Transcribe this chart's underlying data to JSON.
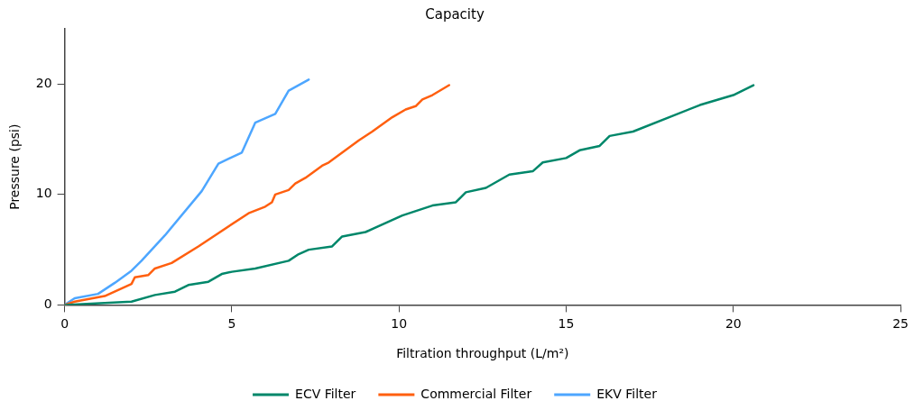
{
  "chart_data": {
    "type": "line",
    "title": "Capacity",
    "xlabel": "Filtration throughput (L/m²)",
    "ylabel": "Pressure (psi)",
    "xlim": [
      0,
      25
    ],
    "xticks": [
      0,
      5,
      10,
      15,
      20,
      25
    ],
    "ylim": [
      0,
      25
    ],
    "yticks": [
      0,
      10,
      20
    ],
    "grid": false,
    "legend": "bottom",
    "marker": "none",
    "line_style": "solid",
    "series": [
      {
        "name": "ECV Filter",
        "color": "#00876a",
        "x": [
          0,
          2.0,
          2.7,
          3.3,
          3.7,
          4.3,
          4.7,
          5.0,
          5.7,
          6.7,
          7.0,
          7.3,
          8.0,
          8.3,
          9.0,
          10.1,
          11.0,
          11.7,
          12.0,
          12.6,
          13.3,
          14.0,
          14.3,
          15.0,
          15.4,
          16.0,
          16.3,
          17.0,
          19.0,
          20.0,
          20.6
        ],
        "values": [
          0,
          0.3,
          0.9,
          1.2,
          1.8,
          2.1,
          2.8,
          3.0,
          3.3,
          4.0,
          4.6,
          5.0,
          5.3,
          6.2,
          6.6,
          8.1,
          9.0,
          9.3,
          10.2,
          10.6,
          11.8,
          12.1,
          12.9,
          13.3,
          14.0,
          14.4,
          15.3,
          15.7,
          18.1,
          19.0,
          19.9
        ]
      },
      {
        "name": "Commercial Filter",
        "color": "#ff5f0f",
        "x": [
          0,
          0.3,
          1.2,
          2.0,
          2.1,
          2.5,
          2.7,
          3.2,
          4.0,
          4.6,
          5.5,
          6.0,
          6.2,
          6.3,
          6.7,
          6.9,
          7.2,
          7.7,
          7.9,
          8.8,
          9.2,
          9.8,
          10.2,
          10.5,
          10.7,
          11.0,
          11.5
        ],
        "values": [
          0,
          0.3,
          0.8,
          1.9,
          2.5,
          2.7,
          3.3,
          3.8,
          5.3,
          6.5,
          8.3,
          8.9,
          9.3,
          10.0,
          10.4,
          11.0,
          11.5,
          12.6,
          12.9,
          14.9,
          15.7,
          17.0,
          17.7,
          18.0,
          18.6,
          19.0,
          19.9
        ]
      },
      {
        "name": "EKV Filter",
        "color": "#4da6ff",
        "x": [
          0,
          0.3,
          1.0,
          1.5,
          2.0,
          2.3,
          3.0,
          4.1,
          4.6,
          5.3,
          5.7,
          6.3,
          6.7,
          7.3
        ],
        "values": [
          0,
          0.6,
          1.0,
          2.0,
          3.1,
          4.0,
          6.3,
          10.3,
          12.8,
          13.8,
          16.5,
          17.3,
          19.4,
          20.4
        ]
      }
    ]
  }
}
